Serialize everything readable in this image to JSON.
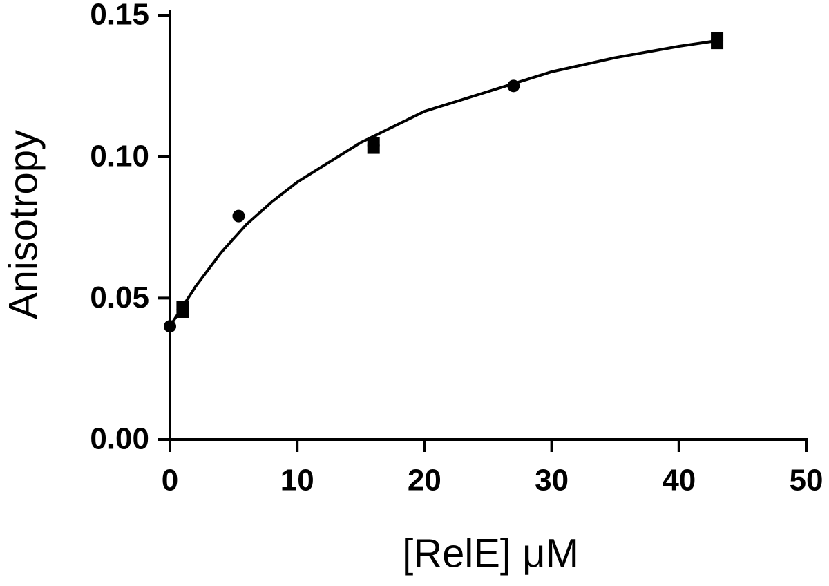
{
  "chart_data": {
    "type": "scatter",
    "x_label": "[RelE] μM",
    "y_label": "Anisotropy",
    "x": [
      0,
      1,
      5.4,
      16,
      27,
      43
    ],
    "values": [
      0.04,
      0.046,
      0.079,
      0.104,
      0.125,
      0.141
    ],
    "errors": [
      null,
      0.003,
      null,
      0.003,
      null,
      0.003
    ],
    "color": "#000000",
    "fit": {
      "x": [
        0,
        2,
        4,
        6,
        8,
        10,
        15,
        20,
        25,
        30,
        35,
        40,
        43
      ],
      "values": [
        0.04,
        0.054,
        0.066,
        0.076,
        0.084,
        0.091,
        0.105,
        0.116,
        0.123,
        0.13,
        0.135,
        0.139,
        0.141
      ]
    },
    "xlim": [
      0,
      50
    ],
    "xticks": [
      0,
      10,
      20,
      30,
      40,
      50
    ],
    "ylim": [
      0,
      0.15
    ],
    "yticks": [
      {
        "value": 0,
        "label": "0.00"
      },
      {
        "value": 0.05,
        "label": "0.05"
      },
      {
        "value": 0.1,
        "label": "0.10"
      },
      {
        "value": 0.15,
        "label": "0.15"
      }
    ]
  }
}
